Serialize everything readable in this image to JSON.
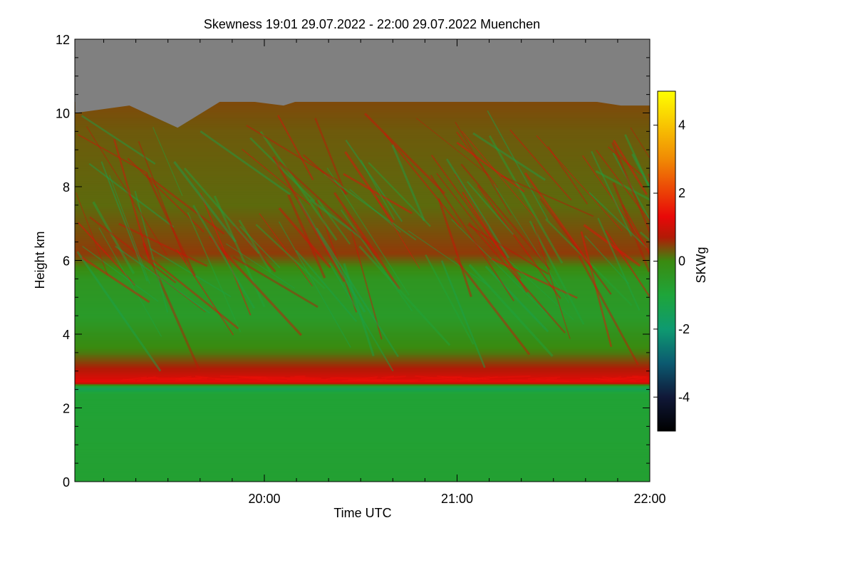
{
  "chart_data": {
    "type": "heatmap",
    "title": "Skewness   19:01 29.07.2022 - 22:00 29.07.2022 Muenchen",
    "xlabel": "Time UTC",
    "ylabel": "Height km",
    "x_range_hours": [
      19.0167,
      22.0
    ],
    "ylim": [
      0,
      12
    ],
    "x_ticks": [
      {
        "value": 20.0,
        "label": "20:00"
      },
      {
        "value": 21.0,
        "label": "21:00"
      },
      {
        "value": 22.0,
        "label": "22:00"
      }
    ],
    "y_ticks": [
      {
        "value": 0,
        "label": "0"
      },
      {
        "value": 2,
        "label": "2"
      },
      {
        "value": 4,
        "label": "4"
      },
      {
        "value": 6,
        "label": "6"
      },
      {
        "value": 8,
        "label": "8"
      },
      {
        "value": 10,
        "label": "10"
      },
      {
        "value": 12,
        "label": "12"
      }
    ],
    "colorbar": {
      "label": "SKWg",
      "range": [
        -5,
        5
      ],
      "ticks": [
        {
          "value": 4,
          "label": "4"
        },
        {
          "value": 2,
          "label": "2"
        },
        {
          "value": 0,
          "label": "0"
        },
        {
          "value": -2,
          "label": "-2"
        },
        {
          "value": -4,
          "label": "-4"
        }
      ],
      "stops": [
        {
          "value": -5,
          "color": "#000000"
        },
        {
          "value": -4,
          "color": "#101838"
        },
        {
          "value": -3,
          "color": "#0b5a70"
        },
        {
          "value": -2,
          "color": "#0e9a70"
        },
        {
          "value": -1,
          "color": "#1ea53a"
        },
        {
          "value": 0,
          "color": "#3a8a10"
        },
        {
          "value": 0.7,
          "color": "#b21a06"
        },
        {
          "value": 1.3,
          "color": "#e80808"
        },
        {
          "value": 3,
          "color": "#f08a04"
        },
        {
          "value": 5,
          "color": "#ffff00"
        }
      ]
    },
    "no_data_color": "#808080",
    "height_profile": [
      {
        "height_km": 0.0,
        "skewness": -0.8
      },
      {
        "height_km": 2.4,
        "skewness": -0.9
      },
      {
        "height_km": 2.55,
        "skewness": -1.6
      },
      {
        "height_km": 2.7,
        "skewness": 1.3
      },
      {
        "height_km": 3.0,
        "skewness": 0.8
      },
      {
        "height_km": 3.5,
        "skewness": 0.1
      },
      {
        "height_km": 4.5,
        "skewness": -0.6
      },
      {
        "height_km": 5.5,
        "skewness": -0.4
      },
      {
        "height_km": 6.2,
        "skewness": 0.5
      },
      {
        "height_km": 7.5,
        "skewness": 0.2
      },
      {
        "height_km": 9.5,
        "skewness": 0.3
      },
      {
        "height_km": 10.3,
        "skewness": 0.4
      }
    ],
    "cloud_top_km": [
      {
        "time_h": 19.02,
        "height_km": 10.0
      },
      {
        "time_h": 19.3,
        "height_km": 10.2
      },
      {
        "time_h": 19.55,
        "height_km": 9.6
      },
      {
        "time_h": 19.8,
        "height_km": 10.4
      },
      {
        "time_h": 20.1,
        "height_km": 10.2
      },
      {
        "time_h": 20.4,
        "height_km": 10.7
      },
      {
        "time_h": 20.7,
        "height_km": 10.5
      },
      {
        "time_h": 21.0,
        "height_km": 10.6
      },
      {
        "time_h": 21.3,
        "height_km": 10.3
      },
      {
        "time_h": 21.6,
        "height_km": 10.4
      },
      {
        "time_h": 21.85,
        "height_km": 10.2
      },
      {
        "time_h": 22.0,
        "height_km": 10.2
      }
    ]
  }
}
